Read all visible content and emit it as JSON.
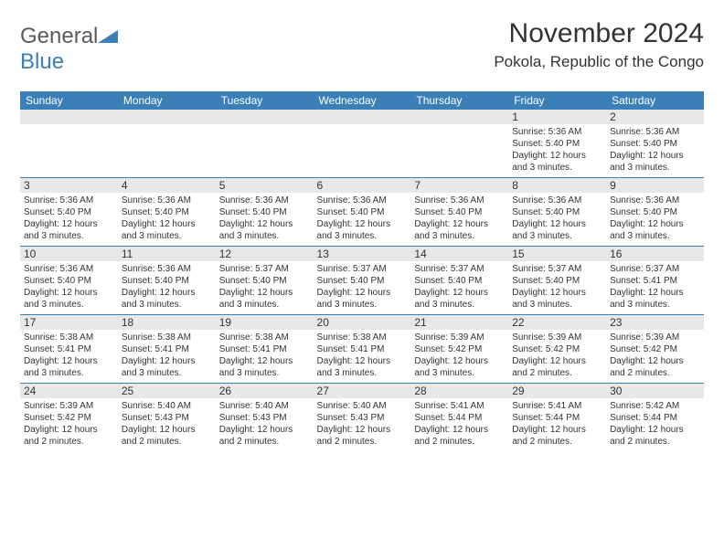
{
  "logo": {
    "line1": "General",
    "line2": "Blue"
  },
  "title": "November 2024",
  "location": "Pokola, Republic of the Congo",
  "headers": [
    "Sunday",
    "Monday",
    "Tuesday",
    "Wednesday",
    "Thursday",
    "Friday",
    "Saturday"
  ],
  "colors": {
    "header_bg": "#3b7fb8",
    "daynum_bg": "#e8e8e8",
    "row_border": "#3b7fb8",
    "logo_gray": "#5a5a5a",
    "logo_blue": "#3b7fb8"
  },
  "weeks": [
    [
      {
        "n": "",
        "lines": []
      },
      {
        "n": "",
        "lines": []
      },
      {
        "n": "",
        "lines": []
      },
      {
        "n": "",
        "lines": []
      },
      {
        "n": "",
        "lines": []
      },
      {
        "n": "1",
        "lines": [
          "Sunrise: 5:36 AM",
          "Sunset: 5:40 PM",
          "Daylight: 12 hours and 3 minutes."
        ]
      },
      {
        "n": "2",
        "lines": [
          "Sunrise: 5:36 AM",
          "Sunset: 5:40 PM",
          "Daylight: 12 hours and 3 minutes."
        ]
      }
    ],
    [
      {
        "n": "3",
        "lines": [
          "Sunrise: 5:36 AM",
          "Sunset: 5:40 PM",
          "Daylight: 12 hours and 3 minutes."
        ]
      },
      {
        "n": "4",
        "lines": [
          "Sunrise: 5:36 AM",
          "Sunset: 5:40 PM",
          "Daylight: 12 hours and 3 minutes."
        ]
      },
      {
        "n": "5",
        "lines": [
          "Sunrise: 5:36 AM",
          "Sunset: 5:40 PM",
          "Daylight: 12 hours and 3 minutes."
        ]
      },
      {
        "n": "6",
        "lines": [
          "Sunrise: 5:36 AM",
          "Sunset: 5:40 PM",
          "Daylight: 12 hours and 3 minutes."
        ]
      },
      {
        "n": "7",
        "lines": [
          "Sunrise: 5:36 AM",
          "Sunset: 5:40 PM",
          "Daylight: 12 hours and 3 minutes."
        ]
      },
      {
        "n": "8",
        "lines": [
          "Sunrise: 5:36 AM",
          "Sunset: 5:40 PM",
          "Daylight: 12 hours and 3 minutes."
        ]
      },
      {
        "n": "9",
        "lines": [
          "Sunrise: 5:36 AM",
          "Sunset: 5:40 PM",
          "Daylight: 12 hours and 3 minutes."
        ]
      }
    ],
    [
      {
        "n": "10",
        "lines": [
          "Sunrise: 5:36 AM",
          "Sunset: 5:40 PM",
          "Daylight: 12 hours and 3 minutes."
        ]
      },
      {
        "n": "11",
        "lines": [
          "Sunrise: 5:36 AM",
          "Sunset: 5:40 PM",
          "Daylight: 12 hours and 3 minutes."
        ]
      },
      {
        "n": "12",
        "lines": [
          "Sunrise: 5:37 AM",
          "Sunset: 5:40 PM",
          "Daylight: 12 hours and 3 minutes."
        ]
      },
      {
        "n": "13",
        "lines": [
          "Sunrise: 5:37 AM",
          "Sunset: 5:40 PM",
          "Daylight: 12 hours and 3 minutes."
        ]
      },
      {
        "n": "14",
        "lines": [
          "Sunrise: 5:37 AM",
          "Sunset: 5:40 PM",
          "Daylight: 12 hours and 3 minutes."
        ]
      },
      {
        "n": "15",
        "lines": [
          "Sunrise: 5:37 AM",
          "Sunset: 5:40 PM",
          "Daylight: 12 hours and 3 minutes."
        ]
      },
      {
        "n": "16",
        "lines": [
          "Sunrise: 5:37 AM",
          "Sunset: 5:41 PM",
          "Daylight: 12 hours and 3 minutes."
        ]
      }
    ],
    [
      {
        "n": "17",
        "lines": [
          "Sunrise: 5:38 AM",
          "Sunset: 5:41 PM",
          "Daylight: 12 hours and 3 minutes."
        ]
      },
      {
        "n": "18",
        "lines": [
          "Sunrise: 5:38 AM",
          "Sunset: 5:41 PM",
          "Daylight: 12 hours and 3 minutes."
        ]
      },
      {
        "n": "19",
        "lines": [
          "Sunrise: 5:38 AM",
          "Sunset: 5:41 PM",
          "Daylight: 12 hours and 3 minutes."
        ]
      },
      {
        "n": "20",
        "lines": [
          "Sunrise: 5:38 AM",
          "Sunset: 5:41 PM",
          "Daylight: 12 hours and 3 minutes."
        ]
      },
      {
        "n": "21",
        "lines": [
          "Sunrise: 5:39 AM",
          "Sunset: 5:42 PM",
          "Daylight: 12 hours and 3 minutes."
        ]
      },
      {
        "n": "22",
        "lines": [
          "Sunrise: 5:39 AM",
          "Sunset: 5:42 PM",
          "Daylight: 12 hours and 2 minutes."
        ]
      },
      {
        "n": "23",
        "lines": [
          "Sunrise: 5:39 AM",
          "Sunset: 5:42 PM",
          "Daylight: 12 hours and 2 minutes."
        ]
      }
    ],
    [
      {
        "n": "24",
        "lines": [
          "Sunrise: 5:39 AM",
          "Sunset: 5:42 PM",
          "Daylight: 12 hours and 2 minutes."
        ]
      },
      {
        "n": "25",
        "lines": [
          "Sunrise: 5:40 AM",
          "Sunset: 5:43 PM",
          "Daylight: 12 hours and 2 minutes."
        ]
      },
      {
        "n": "26",
        "lines": [
          "Sunrise: 5:40 AM",
          "Sunset: 5:43 PM",
          "Daylight: 12 hours and 2 minutes."
        ]
      },
      {
        "n": "27",
        "lines": [
          "Sunrise: 5:40 AM",
          "Sunset: 5:43 PM",
          "Daylight: 12 hours and 2 minutes."
        ]
      },
      {
        "n": "28",
        "lines": [
          "Sunrise: 5:41 AM",
          "Sunset: 5:44 PM",
          "Daylight: 12 hours and 2 minutes."
        ]
      },
      {
        "n": "29",
        "lines": [
          "Sunrise: 5:41 AM",
          "Sunset: 5:44 PM",
          "Daylight: 12 hours and 2 minutes."
        ]
      },
      {
        "n": "30",
        "lines": [
          "Sunrise: 5:42 AM",
          "Sunset: 5:44 PM",
          "Daylight: 12 hours and 2 minutes."
        ]
      }
    ]
  ]
}
